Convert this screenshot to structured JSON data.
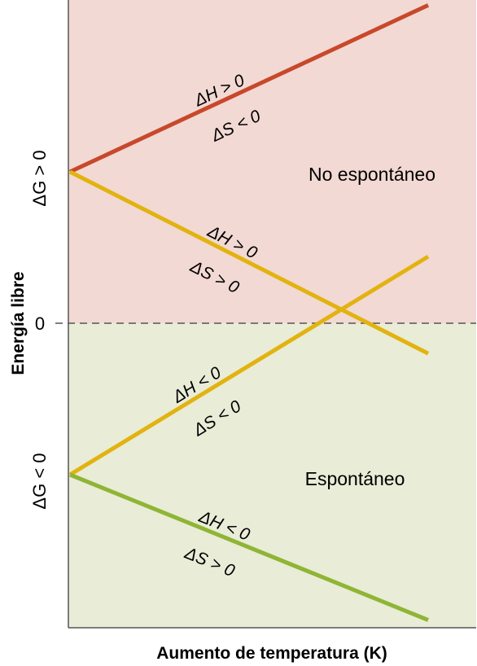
{
  "chart_data": {
    "type": "line",
    "xlabel": "Aumento de temperatura (K)",
    "ylabel": "Energía libre",
    "y_tick_labels": {
      "positive": "ΔG > 0",
      "zero": "0",
      "negative": "ΔG < 0"
    },
    "regions": {
      "top": {
        "label": "No espontáneo",
        "color": "#f2d9d3"
      },
      "bottom": {
        "label": "Espontáneo",
        "color": "#e9ecd7"
      }
    },
    "xlim": [
      0,
      1
    ],
    "ylim": [
      -1.0,
      1.05
    ],
    "series": [
      {
        "color": "#c8482b",
        "label_line1": "ΔH > 0",
        "label_line2": "ΔS < 0",
        "x": [
          0,
          1
        ],
        "y": [
          0.5,
          1.05
        ]
      },
      {
        "color": "#e2b310",
        "label_line1": "ΔH > 0",
        "label_line2": "ΔS > 0",
        "x": [
          0,
          1
        ],
        "y": [
          0.5,
          -0.1
        ]
      },
      {
        "color": "#e2b310",
        "label_line1": "ΔH < 0",
        "label_line2": "ΔS < 0",
        "x": [
          0,
          1
        ],
        "y": [
          -0.5,
          0.22
        ]
      },
      {
        "color": "#8fb534",
        "label_line1": "ΔH < 0",
        "label_line2": "ΔS > 0",
        "x": [
          0,
          1
        ],
        "y": [
          -0.5,
          -0.98
        ]
      }
    ]
  }
}
